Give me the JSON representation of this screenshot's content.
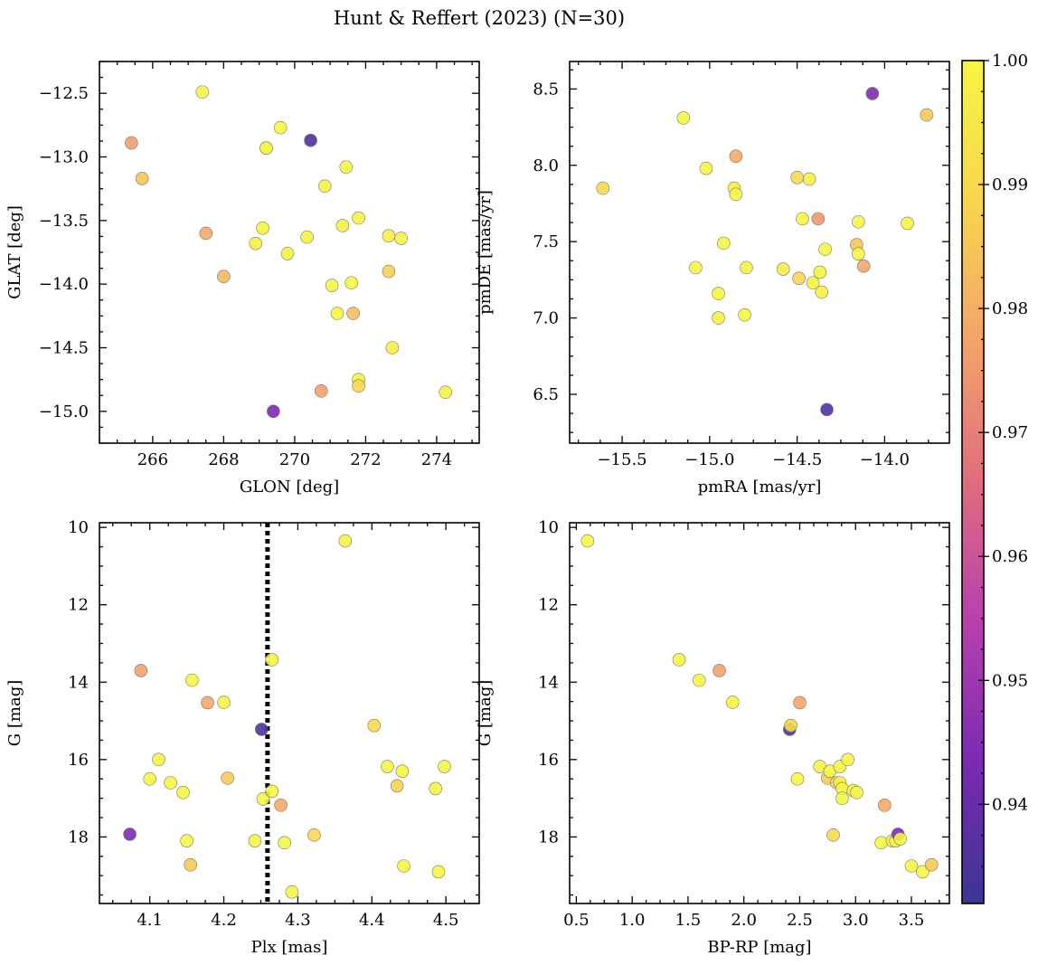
{
  "figure_title": "Hunt & Reffert (2023) (N=30)",
  "colorbar": {
    "range": [
      0.932,
      1.0
    ],
    "ticks": [
      0.94,
      0.95,
      0.96,
      0.97,
      0.98,
      0.99,
      1.0
    ],
    "tick_labels": [
      "0.94",
      "0.95",
      "0.96",
      "0.97",
      "0.98",
      "0.99",
      "1.00"
    ],
    "colormap": "plasma",
    "colors": [
      "#3b3695",
      "#7a2ab2",
      "#b83fae",
      "#e06c7e",
      "#f4a36a",
      "#f8d54d",
      "#f5f542"
    ]
  },
  "chart_data": [
    {
      "type": "scatter",
      "title": "",
      "xlabel": "GLON [deg]",
      "ylabel": "GLAT [deg]",
      "xlim": [
        264.5,
        275.2
      ],
      "ylim": [
        -15.25,
        -12.25
      ],
      "y_inverted": false,
      "xticks": [
        266,
        268,
        270,
        272,
        274
      ],
      "xtick_labels": [
        "266",
        "268",
        "270",
        "272",
        "274"
      ],
      "yticks": [
        -12.5,
        -13.0,
        -13.5,
        -14.0,
        -14.5,
        -15.0
      ],
      "ytick_labels": [
        "−12.5",
        "−13.0",
        "−13.5",
        "−14.0",
        "−14.5",
        "−15.0"
      ],
      "x": [
        265.4,
        265.7,
        267.4,
        267.5,
        268.0,
        268.9,
        269.1,
        269.2,
        269.2,
        269.4,
        269.6,
        269.8,
        270.35,
        270.45,
        270.75,
        270.85,
        271.05,
        271.2,
        271.35,
        271.45,
        271.6,
        271.65,
        271.8,
        271.8,
        271.8,
        272.65,
        272.65,
        272.75,
        273.0,
        274.25
      ],
      "y": [
        -12.89,
        -13.17,
        -12.49,
        -13.6,
        -13.94,
        -13.68,
        -13.56,
        -12.93,
        -12.93,
        -15.0,
        -12.77,
        -13.76,
        -13.63,
        -12.87,
        -14.84,
        -13.23,
        -14.01,
        -14.23,
        -13.54,
        -13.08,
        -13.99,
        -14.23,
        -13.48,
        -14.75,
        -14.8,
        -13.62,
        -13.9,
        -14.5,
        -13.64,
        -14.85
      ],
      "c": [
        0.976,
        0.985,
        1.0,
        0.979,
        0.982,
        0.998,
        0.999,
        0.997,
        1.0,
        0.944,
        1.0,
        0.999,
        0.999,
        0.935,
        0.977,
        0.999,
        1.0,
        1.0,
        0.998,
        1.0,
        1.0,
        0.983,
        0.999,
        1.0,
        0.99,
        0.998,
        0.987,
        0.997,
        1.0,
        0.999
      ],
      "vline": null
    },
    {
      "type": "scatter",
      "title": "",
      "xlabel": "pmRA [mas/yr]",
      "ylabel": "pmDE [mas/yr]",
      "xlim": [
        -15.8,
        -13.63
      ],
      "ylim": [
        6.18,
        8.68
      ],
      "y_inverted": false,
      "xticks": [
        -15.5,
        -15.0,
        -14.5,
        -14.0
      ],
      "xtick_labels": [
        "−15.5",
        "−15.0",
        "−14.5",
        "−14.0"
      ],
      "yticks": [
        6.5,
        7.0,
        7.5,
        8.0,
        8.5
      ],
      "ytick_labels": [
        "6.5",
        "7.0",
        "7.5",
        "8.0",
        "8.5"
      ],
      "x": [
        -15.61,
        -15.15,
        -15.08,
        -15.02,
        -14.95,
        -14.95,
        -14.92,
        -14.86,
        -14.85,
        -14.85,
        -14.8,
        -14.79,
        -14.58,
        -14.5,
        -14.49,
        -14.47,
        -14.43,
        -14.41,
        -14.38,
        -14.37,
        -14.36,
        -14.34,
        -14.33,
        -14.16,
        -14.15,
        -14.15,
        -14.12,
        -14.07,
        -13.87,
        -13.76
      ],
      "y": [
        7.85,
        8.31,
        7.33,
        7.98,
        7.16,
        7.0,
        7.49,
        7.85,
        8.06,
        7.81,
        7.02,
        7.33,
        7.32,
        7.92,
        7.26,
        7.65,
        7.91,
        7.23,
        7.65,
        7.3,
        7.17,
        7.45,
        6.4,
        7.48,
        7.42,
        7.63,
        7.34,
        8.47,
        7.62,
        8.33
      ],
      "c": [
        0.99,
        1.0,
        1.0,
        1.0,
        1.0,
        0.999,
        1.0,
        0.998,
        0.979,
        1.0,
        1.0,
        0.999,
        0.997,
        0.99,
        0.989,
        1.0,
        0.999,
        0.999,
        0.975,
        1.0,
        0.998,
        1.0,
        0.935,
        0.985,
        1.0,
        1.0,
        0.978,
        0.944,
        1.0,
        0.986
      ],
      "vline": null
    },
    {
      "type": "scatter",
      "title": "",
      "xlabel": "Plx [mas]",
      "ylabel": "G [mag]",
      "xlim": [
        4.032,
        4.545
      ],
      "ylim": [
        19.72,
        9.88
      ],
      "y_inverted": true,
      "xticks": [
        4.1,
        4.2,
        4.3,
        4.4,
        4.5
      ],
      "xtick_labels": [
        "4.1",
        "4.2",
        "4.3",
        "4.4",
        "4.5"
      ],
      "yticks": [
        10,
        12,
        14,
        16,
        18
      ],
      "ytick_labels": [
        "10",
        "12",
        "14",
        "16",
        "18"
      ],
      "x": [
        4.073,
        4.088,
        4.1,
        4.112,
        4.128,
        4.145,
        4.15,
        4.155,
        4.157,
        4.178,
        4.2,
        4.205,
        4.242,
        4.251,
        4.253,
        4.265,
        4.265,
        4.277,
        4.282,
        4.292,
        4.322,
        4.364,
        4.403,
        4.421,
        4.434,
        4.441,
        4.443,
        4.486,
        4.49,
        4.498
      ],
      "y": [
        17.93,
        13.7,
        16.5,
        16.0,
        16.6,
        16.85,
        18.1,
        18.72,
        13.95,
        14.53,
        14.52,
        16.48,
        18.1,
        15.22,
        17.02,
        16.82,
        13.42,
        17.18,
        18.15,
        19.42,
        17.95,
        10.35,
        15.12,
        16.18,
        16.68,
        16.3,
        18.75,
        16.75,
        18.9,
        16.18
      ],
      "c": [
        0.944,
        0.977,
        1.0,
        1.0,
        1.0,
        1.0,
        1.0,
        0.986,
        1.0,
        0.978,
        1.0,
        0.986,
        1.0,
        0.935,
        1.0,
        1.0,
        1.0,
        0.979,
        1.0,
        1.0,
        0.99,
        0.999,
        0.99,
        1.0,
        0.988,
        1.0,
        1.0,
        1.0,
        1.0,
        1.0
      ],
      "vline": 4.259
    },
    {
      "type": "scatter",
      "title": "",
      "xlabel": "BP-RP [mag]",
      "ylabel": "G [mag]",
      "xlim": [
        0.44,
        3.84
      ],
      "ylim": [
        19.72,
        9.88
      ],
      "y_inverted": true,
      "xticks": [
        0.5,
        1.0,
        1.5,
        2.0,
        2.5,
        3.0,
        3.5
      ],
      "xtick_labels": [
        "0.5",
        "1.0",
        "1.5",
        "2.0",
        "2.5",
        "3.0",
        "3.5"
      ],
      "yticks": [
        10,
        12,
        14,
        16,
        18
      ],
      "ytick_labels": [
        "10",
        "12",
        "14",
        "16",
        "18"
      ],
      "x": [
        0.6,
        1.42,
        1.6,
        1.78,
        1.9,
        2.41,
        2.42,
        2.48,
        2.5,
        2.68,
        2.75,
        2.77,
        2.8,
        2.83,
        2.86,
        2.86,
        2.88,
        2.88,
        2.93,
        2.98,
        3.01,
        3.23,
        3.26,
        3.33,
        3.36,
        3.38,
        3.4,
        3.5,
        3.6,
        3.68
      ],
      "y": [
        10.35,
        13.42,
        13.95,
        13.7,
        14.52,
        15.22,
        15.12,
        16.5,
        14.53,
        16.18,
        16.48,
        16.3,
        17.95,
        16.6,
        16.18,
        16.6,
        16.75,
        17.0,
        16.0,
        16.8,
        16.85,
        18.15,
        17.18,
        18.1,
        18.1,
        17.93,
        18.05,
        18.75,
        18.9,
        18.72
      ],
      "c": [
        1.0,
        1.0,
        1.0,
        0.977,
        1.0,
        0.935,
        0.99,
        1.0,
        0.978,
        1.0,
        0.986,
        1.0,
        0.99,
        0.988,
        1.0,
        1.0,
        1.0,
        1.0,
        1.0,
        1.0,
        1.0,
        1.0,
        0.979,
        1.0,
        1.0,
        0.944,
        1.0,
        1.0,
        1.0,
        0.986
      ],
      "vline": null
    }
  ]
}
